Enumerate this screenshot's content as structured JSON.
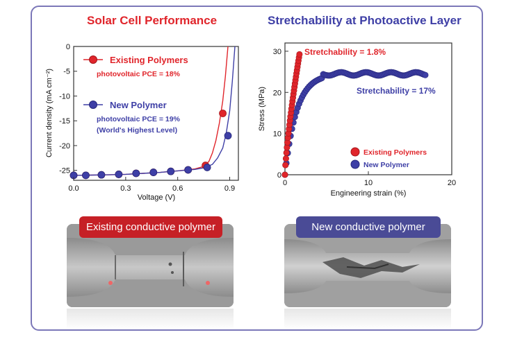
{
  "titles": {
    "left": "Solar Cell Performance",
    "right": "Stretchability at Photoactive Layer"
  },
  "chart_data": [
    {
      "type": "line",
      "xlabel": "Voltage (V)",
      "ylabel": "Current density (mA cm⁻²)",
      "xlim": [
        0,
        0.95
      ],
      "ylim": [
        -27,
        0
      ],
      "xticks": [
        "0.0",
        "0.3",
        "0.6",
        "0.9"
      ],
      "yticks": [
        "0",
        "-5",
        "-10",
        "-15",
        "-20",
        "-25"
      ],
      "series": [
        {
          "name": "Existing Polymers",
          "note": "photovoltaic PCE = 18%",
          "color": "#e0252b",
          "x": [
            0.0,
            0.1,
            0.2,
            0.3,
            0.4,
            0.5,
            0.6,
            0.7,
            0.75,
            0.78,
            0.8,
            0.82,
            0.84,
            0.86,
            0.875,
            0.89
          ],
          "y": [
            -26.0,
            -25.95,
            -25.9,
            -25.8,
            -25.6,
            -25.4,
            -25.1,
            -24.7,
            -24.2,
            -23.2,
            -21.5,
            -19.0,
            -15.5,
            -11.0,
            -6.0,
            0.0
          ],
          "markers_x": [
            0.0,
            0.07,
            0.16,
            0.26,
            0.36,
            0.46,
            0.56,
            0.66,
            0.76,
            0.86
          ],
          "markers_y": [
            -26.0,
            -26.0,
            -25.9,
            -25.8,
            -25.6,
            -25.4,
            -25.2,
            -24.9,
            -24.0,
            -13.5
          ]
        },
        {
          "name": "New Polymer",
          "note1": "photovoltaic PCE = 19%",
          "note2": "(World's Highest Level)",
          "color": "#3e3fa6",
          "x": [
            0.0,
            0.1,
            0.2,
            0.3,
            0.4,
            0.5,
            0.6,
            0.7,
            0.75,
            0.8,
            0.83,
            0.86,
            0.88,
            0.9,
            0.915,
            0.93
          ],
          "y": [
            -26.0,
            -25.95,
            -25.9,
            -25.8,
            -25.6,
            -25.4,
            -25.1,
            -24.8,
            -24.5,
            -23.8,
            -22.5,
            -20.5,
            -17.5,
            -13.0,
            -7.0,
            0.0
          ],
          "markers_x": [
            0.0,
            0.07,
            0.16,
            0.26,
            0.36,
            0.46,
            0.56,
            0.66,
            0.77,
            0.89
          ],
          "markers_y": [
            -26.0,
            -26.0,
            -25.9,
            -25.8,
            -25.6,
            -25.4,
            -25.2,
            -24.9,
            -24.4,
            -18.0
          ]
        }
      ]
    },
    {
      "type": "scatter",
      "xlabel": "Engineering strain (%)",
      "ylabel": "Stress (MPa)",
      "xlim": [
        0,
        20
      ],
      "ylim": [
        0,
        32
      ],
      "xticks": [
        "0",
        "10",
        "20"
      ],
      "yticks": [
        "0",
        "10",
        "20",
        "30"
      ],
      "legend": [
        "Existing Polymers",
        "New Polymer"
      ],
      "series": [
        {
          "name": "Existing Polymers",
          "annotation": "Stretchability = 1.8%",
          "color": "#e0252b",
          "break_strain": 1.8,
          "peak_stress": 30
        },
        {
          "name": "New Polymer",
          "annotation": "Stretchability = 17%",
          "color": "#3e3fa6",
          "break_strain": 17,
          "plateau_stress": 24.5
        }
      ]
    }
  ],
  "photos": {
    "left_label": "Existing conductive polymer",
    "right_label": "New conductive polymer"
  }
}
